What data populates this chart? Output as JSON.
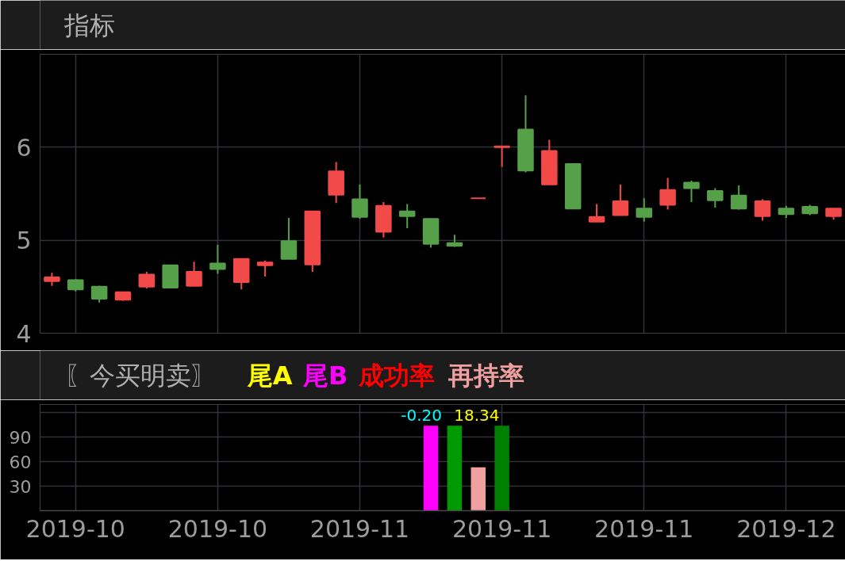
{
  "chart_data": [
    {
      "type": "candlestick",
      "title": "指标",
      "categories": [
        null,
        "2019-10",
        null,
        null,
        null,
        null,
        null,
        "2019-10",
        null,
        null,
        null,
        null,
        null,
        "2019-11",
        null,
        null,
        null,
        null,
        null,
        "2019-11",
        null,
        null,
        null,
        null,
        null,
        "2019-11",
        null,
        null,
        null,
        null,
        null,
        "2019-12",
        null,
        null
      ],
      "ohlc": [
        [
          4.56,
          4.65,
          4.51,
          4.6
        ],
        [
          4.57,
          4.58,
          4.45,
          4.47
        ],
        [
          4.5,
          4.51,
          4.33,
          4.37
        ],
        [
          4.36,
          4.44,
          4.35,
          4.44
        ],
        [
          4.5,
          4.66,
          4.48,
          4.63
        ],
        [
          4.73,
          4.73,
          4.49,
          4.49
        ],
        [
          4.51,
          4.77,
          4.51,
          4.66
        ],
        [
          4.75,
          4.95,
          4.64,
          4.69
        ],
        [
          4.55,
          4.8,
          4.47,
          4.8
        ],
        [
          4.73,
          4.78,
          4.61,
          4.76
        ],
        [
          4.99,
          5.24,
          4.8,
          4.8
        ],
        [
          4.74,
          5.31,
          4.66,
          5.31
        ],
        [
          5.49,
          5.84,
          5.4,
          5.74
        ],
        [
          5.44,
          5.6,
          5.23,
          5.25
        ],
        [
          5.09,
          5.41,
          5.03,
          5.37
        ],
        [
          5.31,
          5.39,
          5.13,
          5.26
        ],
        [
          5.23,
          5.23,
          4.92,
          4.96
        ],
        [
          4.97,
          5.06,
          4.93,
          4.94
        ],
        [
          5.45,
          5.45,
          5.45,
          5.45
        ],
        [
          6.0,
          6.01,
          5.79,
          6.01
        ],
        [
          6.19,
          6.56,
          5.73,
          5.75
        ],
        [
          5.6,
          6.08,
          5.6,
          5.96
        ],
        [
          5.82,
          5.82,
          5.34,
          5.34
        ],
        [
          5.2,
          5.39,
          5.2,
          5.25
        ],
        [
          5.27,
          5.6,
          5.27,
          5.42
        ],
        [
          5.34,
          5.45,
          5.2,
          5.25
        ],
        [
          5.38,
          5.67,
          5.33,
          5.54
        ],
        [
          5.62,
          5.64,
          5.41,
          5.56
        ],
        [
          5.53,
          5.56,
          5.35,
          5.43
        ],
        [
          5.48,
          5.59,
          5.33,
          5.34
        ],
        [
          5.26,
          5.44,
          5.21,
          5.42
        ],
        [
          5.34,
          5.37,
          5.24,
          5.28
        ],
        [
          5.36,
          5.38,
          5.27,
          5.29
        ],
        [
          5.26,
          5.34,
          5.22,
          5.34
        ]
      ],
      "colors": [
        "#f24a48",
        "#56a04a",
        "#56a04a",
        "#f24a48",
        "#f24a48",
        "#56a04a",
        "#f24a48",
        "#56a04a",
        "#f24a48",
        "#f24a48",
        "#56a04a",
        "#f24a48",
        "#f24a48",
        "#56a04a",
        "#f24a48",
        "#56a04a",
        "#56a04a",
        "#56a04a",
        "#f24a48",
        "#f24a48",
        "#56a04a",
        "#f24a48",
        "#56a04a",
        "#f24a48",
        "#f24a48",
        "#56a04a",
        "#f24a48",
        "#56a04a",
        "#56a04a",
        "#56a04a",
        "#f24a48",
        "#56a04a",
        "#56a04a",
        "#f24a48"
      ],
      "ylim": [
        4,
        7
      ],
      "yticks": [
        4,
        5,
        6
      ],
      "tick_labels": "y",
      "grid": true
    },
    {
      "type": "bar",
      "title": "〖今买明卖〗",
      "categories": [
        null,
        "2019-10",
        null,
        null,
        null,
        null,
        null,
        "2019-10",
        null,
        null,
        null,
        null,
        null,
        "2019-11",
        null,
        null,
        null,
        null,
        null,
        "2019-11",
        null,
        null,
        null,
        null,
        null,
        "2019-11",
        null,
        null,
        null,
        null,
        null,
        "2019-12",
        null,
        null
      ],
      "series": [
        {
          "name": "尾A",
          "color": "#ffff00",
          "values": [
            null,
            null,
            null,
            null,
            null,
            null,
            null,
            null,
            null,
            null,
            null,
            null,
            null,
            null,
            null,
            null,
            null,
            null,
            null,
            null,
            null,
            null,
            null,
            null,
            null,
            null,
            null,
            null,
            null,
            null,
            null,
            null,
            null,
            null
          ]
        },
        {
          "name": "尾B",
          "color": "#ff00ff",
          "values": [
            null,
            null,
            null,
            null,
            null,
            null,
            null,
            null,
            null,
            null,
            null,
            null,
            null,
            null,
            null,
            null,
            104,
            null,
            null,
            null,
            null,
            null,
            null,
            null,
            null,
            null,
            null,
            null,
            null,
            null,
            null,
            null,
            null,
            null
          ]
        },
        {
          "name": "成功率",
          "color": "#ff0000",
          "values": [
            null,
            null,
            null,
            null,
            null,
            null,
            null,
            null,
            null,
            null,
            null,
            null,
            null,
            null,
            null,
            null,
            null,
            null,
            null,
            null,
            null,
            null,
            null,
            null,
            null,
            null,
            null,
            null,
            null,
            null,
            null,
            null,
            null,
            null
          ]
        },
        {
          "name": "再持率",
          "color": "#f0a0a0",
          "values": [
            null,
            null,
            null,
            null,
            null,
            null,
            null,
            null,
            null,
            null,
            null,
            null,
            null,
            null,
            null,
            null,
            null,
            null,
            53,
            null,
            null,
            null,
            null,
            null,
            null,
            null,
            null,
            null,
            null,
            null,
            null,
            null,
            null,
            null
          ]
        },
        {
          "color": "#009a00",
          "values": [
            null,
            null,
            null,
            null,
            null,
            null,
            null,
            null,
            null,
            null,
            null,
            null,
            null,
            null,
            null,
            null,
            null,
            104,
            null,
            null,
            null,
            null,
            null,
            null,
            null,
            null,
            null,
            null,
            null,
            null,
            null,
            null,
            null,
            null
          ]
        },
        {
          "color": "#008000",
          "values": [
            null,
            null,
            null,
            null,
            null,
            null,
            null,
            null,
            null,
            null,
            null,
            null,
            null,
            null,
            null,
            null,
            null,
            null,
            null,
            104,
            null,
            null,
            null,
            null,
            null,
            null,
            null,
            null,
            null,
            null,
            null,
            null,
            null,
            null
          ]
        }
      ],
      "ylim": [
        0,
        130
      ],
      "yticks": [
        30,
        60,
        90,
        {
          "value": 120,
          "label": null
        }
      ],
      "annotations": [
        "-0.20",
        "18.34"
      ],
      "legend": "top left",
      "grid": true
    }
  ]
}
